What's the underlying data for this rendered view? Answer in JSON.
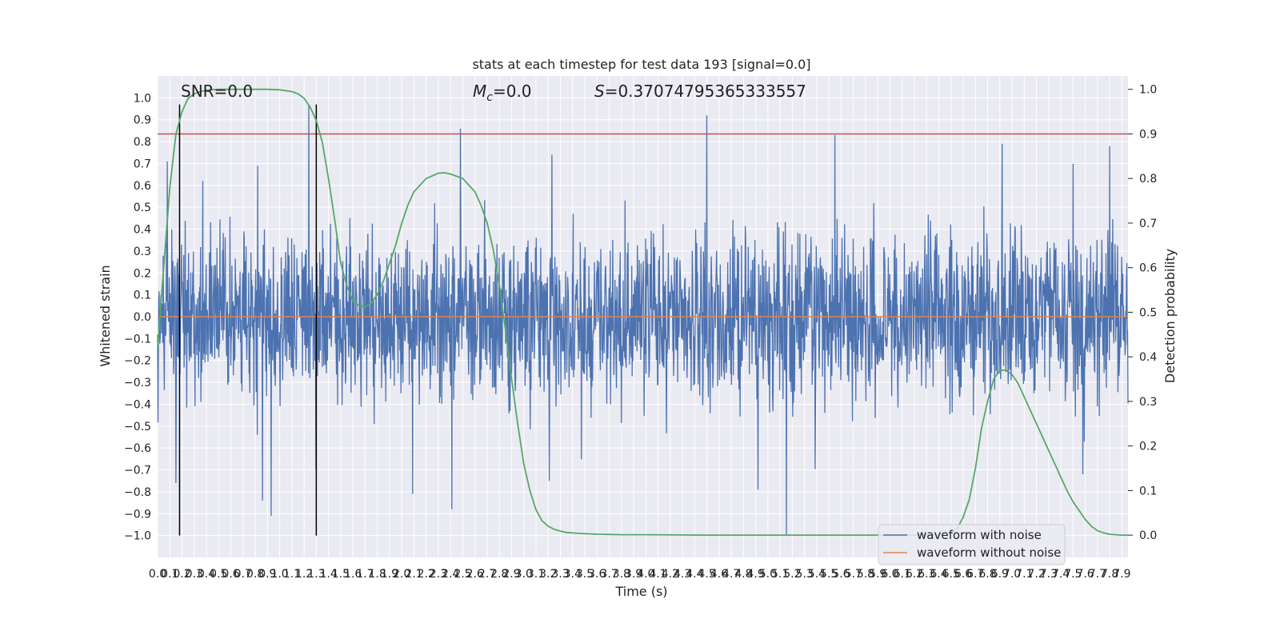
{
  "chart_data": {
    "type": "line",
    "title": "stats at each timestep for test data 193 [signal=0.0]",
    "xlabel": "Time (s)",
    "ylabel": "Whitened strain",
    "ylabel_right": "Detection probability",
    "annotations": {
      "snr": "SNR=0.0",
      "mc_symbol": "M",
      "mc_sub": "c",
      "mc_value": "=0.0",
      "s_symbol": "S",
      "s_value": "=0.37074795365333557"
    },
    "xlim": [
      0.0,
      7.95
    ],
    "ylim": [
      -1.1,
      1.1
    ],
    "ylim_right": [
      -0.05,
      1.03
    ],
    "xticks": [
      0.0,
      0.1,
      0.2,
      0.3,
      0.4,
      0.5,
      0.6,
      0.7,
      0.8,
      0.9,
      1.0,
      1.1,
      1.2,
      1.3,
      1.4,
      1.5,
      1.6,
      1.7,
      1.8,
      1.9,
      2.0,
      2.1,
      2.2,
      2.3,
      2.4,
      2.5,
      2.6,
      2.7,
      2.8,
      2.9,
      3.0,
      3.1,
      3.2,
      3.3,
      3.4,
      3.5,
      3.6,
      3.7,
      3.8,
      3.9,
      4.0,
      4.1,
      4.2,
      4.3,
      4.4,
      4.5,
      4.6,
      4.7,
      4.8,
      4.9,
      5.0,
      5.1,
      5.2,
      5.3,
      5.4,
      5.5,
      5.6,
      5.7,
      5.8,
      5.9,
      6.0,
      6.1,
      6.2,
      6.3,
      6.4,
      6.5,
      6.6,
      6.7,
      6.8,
      6.9,
      7.0,
      7.1,
      7.2,
      7.3,
      7.4,
      7.5,
      7.6,
      7.7,
      7.8,
      7.9
    ],
    "yticks": [
      -1.0,
      -0.9,
      -0.8,
      -0.7,
      -0.6,
      -0.5,
      -0.4,
      -0.3,
      -0.2,
      -0.1,
      0.0,
      0.1,
      0.2,
      0.3,
      0.4,
      0.5,
      0.6,
      0.7,
      0.8,
      0.9,
      1.0
    ],
    "yticks_right": [
      0.0,
      0.1,
      0.2,
      0.3,
      0.4,
      0.5,
      0.6,
      0.7,
      0.8,
      0.9,
      1.0
    ],
    "grid": true,
    "legend_position": "bottom-right",
    "colors": {
      "plot_bg": "#EAEAF2",
      "noise": "#4C72B0",
      "clean": "#DD8452",
      "probability": "#55A868",
      "threshold": "#C44E52",
      "markers": "#000000",
      "grid": "#FFFFFF"
    },
    "series": [
      {
        "name": "waveform with noise",
        "color": "#4C72B0",
        "noise_envelope": {
          "mean": 0.0,
          "typical_amplitude": 0.35,
          "min": -1.0,
          "max": 0.97
        },
        "peaks": [
          {
            "x": 0.08,
            "y": 0.71
          },
          {
            "x": 0.37,
            "y": 0.62
          },
          {
            "x": 0.82,
            "y": 0.69
          },
          {
            "x": 1.24,
            "y": 0.97
          },
          {
            "x": 2.48,
            "y": 0.86
          },
          {
            "x": 3.23,
            "y": 0.74
          },
          {
            "x": 4.5,
            "y": 0.92
          },
          {
            "x": 5.55,
            "y": 0.83
          },
          {
            "x": 6.92,
            "y": 0.79
          },
          {
            "x": 7.8,
            "y": 0.78
          }
        ],
        "troughs": [
          {
            "x": 0.15,
            "y": -0.76
          },
          {
            "x": 0.86,
            "y": -0.84
          },
          {
            "x": 0.93,
            "y": -0.91
          },
          {
            "x": 2.09,
            "y": -0.81
          },
          {
            "x": 2.41,
            "y": -0.88
          },
          {
            "x": 3.21,
            "y": -0.75
          },
          {
            "x": 4.92,
            "y": -0.79
          },
          {
            "x": 5.15,
            "y": -1.0
          },
          {
            "x": 7.58,
            "y": -0.72
          }
        ]
      },
      {
        "name": "waveform without noise",
        "color": "#DD8452",
        "values_constant": 0.0
      },
      {
        "name": "detection probability",
        "axis": "right",
        "color": "#55A868",
        "x": [
          0.0,
          0.05,
          0.1,
          0.15,
          0.2,
          0.25,
          0.3,
          0.35,
          0.4,
          0.5,
          0.6,
          0.7,
          0.8,
          0.9,
          1.0,
          1.1,
          1.15,
          1.2,
          1.25,
          1.3,
          1.35,
          1.4,
          1.45,
          1.5,
          1.55,
          1.6,
          1.65,
          1.7,
          1.75,
          1.8,
          1.85,
          1.9,
          1.95,
          2.0,
          2.05,
          2.1,
          2.2,
          2.3,
          2.35,
          2.4,
          2.5,
          2.6,
          2.65,
          2.7,
          2.75,
          2.8,
          2.85,
          2.9,
          2.95,
          3.0,
          3.05,
          3.1,
          3.15,
          3.2,
          3.25,
          3.3,
          3.35,
          3.45,
          3.6,
          3.8,
          4.0,
          4.5,
          5.0,
          5.5,
          6.0,
          6.2,
          6.4,
          6.5,
          6.55,
          6.6,
          6.65,
          6.7,
          6.75,
          6.8,
          6.85,
          6.9,
          6.95,
          7.0,
          7.05,
          7.1,
          7.15,
          7.2,
          7.25,
          7.3,
          7.35,
          7.4,
          7.45,
          7.5,
          7.55,
          7.6,
          7.65,
          7.7,
          7.75,
          7.8,
          7.85,
          7.9,
          7.95
        ],
        "values": [
          0.42,
          0.6,
          0.78,
          0.9,
          0.95,
          0.98,
          0.99,
          0.995,
          0.998,
          1.0,
          1.0,
          1.0,
          1.0,
          1.0,
          0.999,
          0.995,
          0.99,
          0.98,
          0.96,
          0.93,
          0.88,
          0.8,
          0.71,
          0.61,
          0.56,
          0.525,
          0.515,
          0.512,
          0.52,
          0.54,
          0.57,
          0.61,
          0.65,
          0.7,
          0.74,
          0.77,
          0.8,
          0.812,
          0.813,
          0.81,
          0.8,
          0.77,
          0.74,
          0.7,
          0.64,
          0.56,
          0.46,
          0.35,
          0.25,
          0.16,
          0.1,
          0.057,
          0.032,
          0.02,
          0.013,
          0.009,
          0.006,
          0.004,
          0.002,
          0.001,
          0.001,
          0.0,
          0.0,
          0.0,
          0.0,
          0.0,
          0.001,
          0.005,
          0.015,
          0.04,
          0.08,
          0.15,
          0.24,
          0.3,
          0.35,
          0.37,
          0.37,
          0.36,
          0.34,
          0.31,
          0.28,
          0.25,
          0.22,
          0.19,
          0.16,
          0.13,
          0.1,
          0.075,
          0.055,
          0.035,
          0.02,
          0.01,
          0.005,
          0.002,
          0.001,
          0.0,
          0.0
        ]
      }
    ],
    "reference_lines": [
      {
        "kind": "hline",
        "axis": "right",
        "y": 0.9,
        "color": "#C44E52"
      },
      {
        "kind": "vline",
        "x": 0.18,
        "y_range": [
          -1.0,
          0.97
        ],
        "color": "#000000"
      },
      {
        "kind": "vline",
        "x": 1.3,
        "y_range": [
          -1.0,
          0.97
        ],
        "color": "#000000"
      }
    ]
  }
}
